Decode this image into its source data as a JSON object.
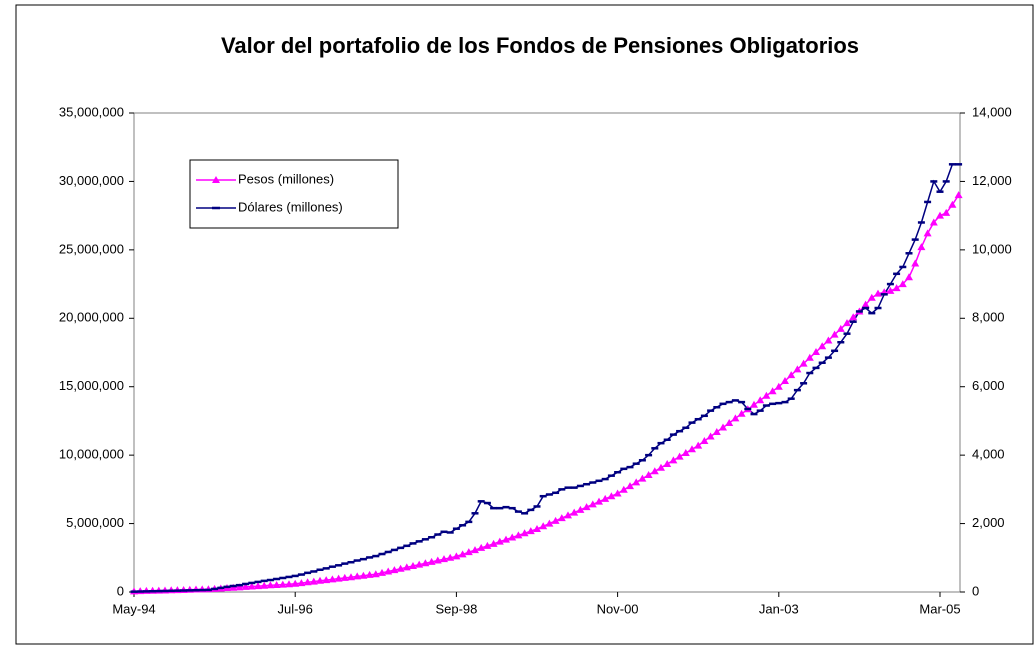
{
  "chart_data": {
    "type": "line",
    "title": "Valor del portafolio de los Fondos de Pensiones Obligatorios",
    "categories": [
      "May-94",
      null,
      null,
      null,
      null,
      null,
      null,
      null,
      null,
      null,
      null,
      null,
      null,
      null,
      null,
      null,
      null,
      null,
      null,
      null,
      null,
      null,
      null,
      null,
      null,
      null,
      "Jul-96",
      null,
      null,
      null,
      null,
      null,
      null,
      null,
      null,
      null,
      null,
      null,
      null,
      null,
      null,
      null,
      null,
      null,
      null,
      null,
      null,
      null,
      null,
      null,
      null,
      null,
      "Sep-98",
      null,
      null,
      null,
      null,
      null,
      null,
      null,
      null,
      null,
      null,
      null,
      null,
      null,
      null,
      null,
      null,
      null,
      null,
      null,
      null,
      null,
      null,
      null,
      null,
      null,
      "Nov-00",
      null,
      null,
      null,
      null,
      null,
      null,
      null,
      null,
      null,
      null,
      null,
      null,
      null,
      null,
      null,
      null,
      null,
      null,
      null,
      null,
      null,
      null,
      null,
      null,
      null,
      "Jan-03",
      null,
      null,
      null,
      null,
      null,
      null,
      null,
      null,
      null,
      null,
      null,
      null,
      null,
      null,
      null,
      null,
      null,
      null,
      null,
      null,
      null,
      null,
      null,
      null,
      null,
      "Mar-05",
      null,
      null,
      null
    ],
    "series": [
      {
        "name": "Pesos (millones)",
        "color": "#ff00ff",
        "marker": "triangle",
        "axis": "y",
        "values": [
          50000,
          60000,
          80000,
          90000,
          100000,
          110000,
          130000,
          140000,
          150000,
          160000,
          180000,
          190000,
          200000,
          230000,
          260000,
          290000,
          310000,
          340000,
          370000,
          400000,
          430000,
          460000,
          490000,
          510000,
          540000,
          570000,
          600000,
          650000,
          710000,
          760000,
          820000,
          870000,
          920000,
          980000,
          1030000,
          1080000,
          1140000,
          1190000,
          1250000,
          1300000,
          1400000,
          1500000,
          1600000,
          1700000,
          1800000,
          1900000,
          2000000,
          2100000,
          2200000,
          2300000,
          2400000,
          2500000,
          2600000,
          2750000,
          2910000,
          3060000,
          3220000,
          3370000,
          3520000,
          3680000,
          3830000,
          3980000,
          4140000,
          4290000,
          4450000,
          4600000,
          4800000,
          5000000,
          5200000,
          5400000,
          5600000,
          5800000,
          6000000,
          6200000,
          6400000,
          6600000,
          6800000,
          7000000,
          7200000,
          7470000,
          7740000,
          8010000,
          8280000,
          8550000,
          8820000,
          9080000,
          9350000,
          9620000,
          9890000,
          10160000,
          10430000,
          10700000,
          11030000,
          11360000,
          11690000,
          12020000,
          12350000,
          12690000,
          13020000,
          13350000,
          13680000,
          14010000,
          14340000,
          14670000,
          15000000,
          15420000,
          15850000,
          16270000,
          16690000,
          17120000,
          17540000,
          17960000,
          18380000,
          18810000,
          19230000,
          19650000,
          20080000,
          20500000,
          21000000,
          21500000,
          21800000,
          21900000,
          22000000,
          22200000,
          22500000,
          23000000,
          24000000,
          25200000,
          26200000,
          27000000,
          27500000,
          27700000,
          28300000,
          29000000
        ]
      },
      {
        "name": "Dólares (millones)",
        "color": "#000080",
        "marker": "dash",
        "axis": "y2",
        "values": [
          10,
          14,
          18,
          22,
          26,
          30,
          35,
          39,
          43,
          47,
          51,
          56,
          60,
          90,
          120,
          150,
          175,
          200,
          235,
          265,
          295,
          325,
          350,
          380,
          410,
          440,
          470,
          510,
          560,
          600,
          650,
          690,
          740,
          780,
          830,
          870,
          920,
          960,
          1010,
          1050,
          1110,
          1170,
          1230,
          1290,
          1350,
          1420,
          1480,
          1540,
          1600,
          1680,
          1760,
          1740,
          1850,
          1950,
          2050,
          2300,
          2650,
          2600,
          2450,
          2450,
          2480,
          2450,
          2350,
          2300,
          2400,
          2500,
          2800,
          2850,
          2900,
          3000,
          3050,
          3050,
          3100,
          3150,
          3200,
          3250,
          3300,
          3400,
          3500,
          3600,
          3650,
          3750,
          3850,
          4000,
          4200,
          4350,
          4450,
          4600,
          4700,
          4800,
          4950,
          5050,
          5150,
          5300,
          5400,
          5500,
          5550,
          5600,
          5550,
          5350,
          5200,
          5300,
          5450,
          5500,
          5520,
          5550,
          5650,
          5900,
          6100,
          6400,
          6550,
          6700,
          6850,
          7050,
          7300,
          7550,
          7900,
          8200,
          8300,
          8150,
          8300,
          8700,
          9000,
          9300,
          9500,
          9900,
          10300,
          10800,
          11400,
          12000,
          11700,
          12000,
          12500,
          12500
        ]
      }
    ],
    "ylim": [
      0,
      35000000
    ],
    "yticks": [
      0,
      {
        "value": 5000000,
        "label": "5,000,000"
      },
      {
        "value": 10000000,
        "label": "10,000,000"
      },
      {
        "value": 15000000,
        "label": "15,000,000"
      },
      {
        "value": 20000000,
        "label": "20,000,000"
      },
      {
        "value": 25000000,
        "label": "25,000,000"
      },
      {
        "value": 30000000,
        "label": "30,000,000"
      },
      {
        "value": 35000000,
        "label": "35,000,000"
      }
    ],
    "y2lim": [
      0,
      14000
    ],
    "y2ticks": [
      0,
      {
        "value": 2000,
        "label": "2,000"
      },
      {
        "value": 4000,
        "label": "4,000"
      },
      {
        "value": 6000,
        "label": "6,000"
      },
      {
        "value": 8000,
        "label": "8,000"
      },
      {
        "value": 10000,
        "label": "10,000"
      },
      {
        "value": 12000,
        "label": "12,000"
      },
      {
        "value": 14000,
        "label": "14,000"
      }
    ],
    "legend": "upper left",
    "grid": false
  }
}
